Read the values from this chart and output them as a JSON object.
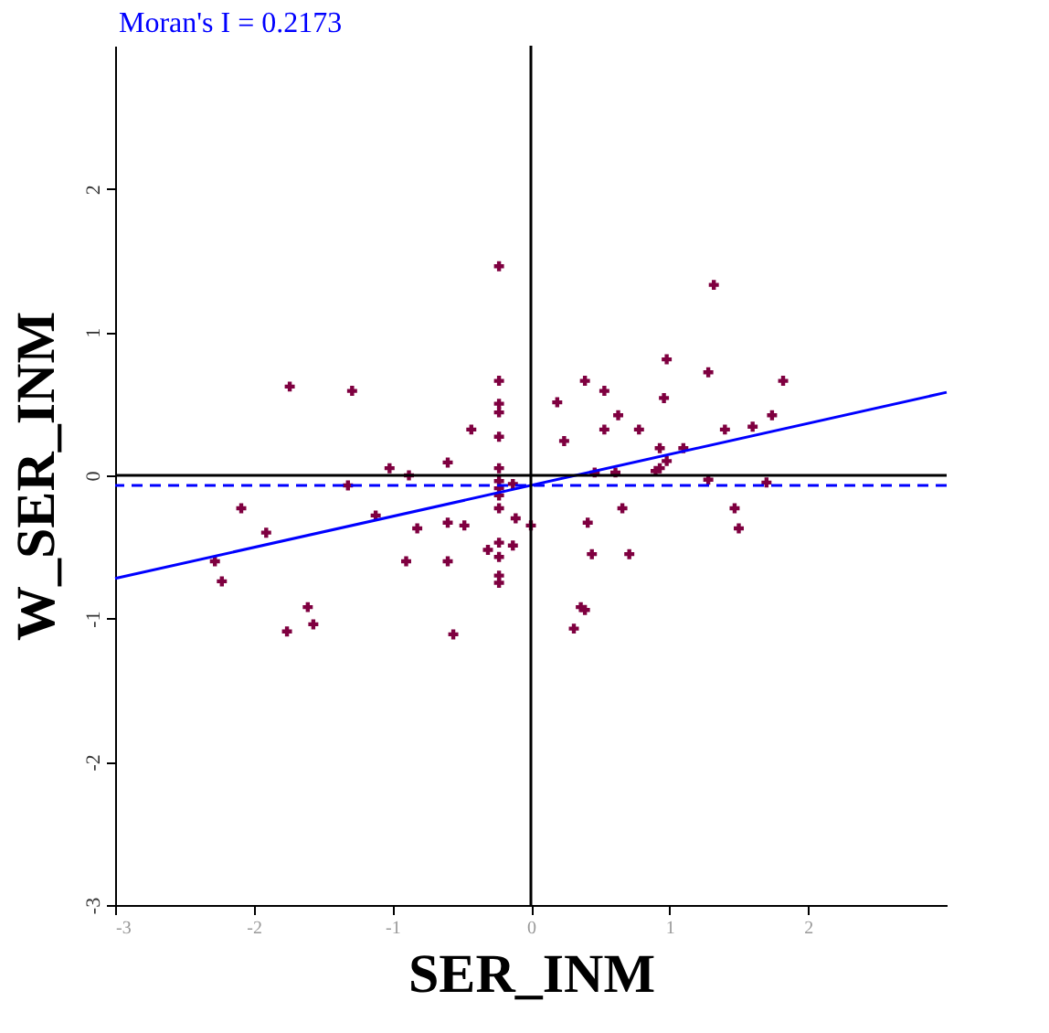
{
  "chart_data": {
    "type": "scatter",
    "title": "Moran's I = 0.2173",
    "xlabel": "SER_INM",
    "ylabel": "W_SER_INM",
    "xlim": [
      -3,
      3
    ],
    "ylim": [
      -3,
      3
    ],
    "xticks": [
      -3,
      -2,
      -1,
      0,
      1,
      2
    ],
    "yticks": [
      -3,
      -2,
      -1,
      0,
      1,
      2
    ],
    "grid": false,
    "ref_lines": [
      {
        "axis": "x",
        "value": 0,
        "label": null,
        "color": "#000000",
        "line_style": "solid"
      },
      {
        "axis": "y",
        "value": 0,
        "label": null,
        "color": "#000000",
        "line_style": "solid"
      },
      {
        "axis": "y",
        "value": -0.07,
        "label": null,
        "color": "#0000ff",
        "line_style": "dashed"
      }
    ],
    "series": [
      {
        "marker": "cross",
        "color": "#7f0040",
        "x": [
          -0.23,
          -1.74,
          -1.29,
          -0.23,
          -0.23,
          -0.23,
          -0.43,
          -0.23,
          -1.02,
          -0.88,
          -0.6,
          -0.23,
          -1.32,
          -0.23,
          -0.23,
          -0.13,
          -0.23,
          -0.23,
          -2.09,
          -1.12,
          -0.11,
          0.0,
          -1.91,
          -0.82,
          -0.6,
          -0.48,
          -2.28,
          -0.9,
          -0.6,
          -0.31,
          -0.23,
          -0.13,
          -0.23,
          -0.23,
          -0.23,
          -2.23,
          -1.61,
          -1.57,
          -1.76,
          -0.56,
          1.32,
          0.98,
          0.39,
          0.53,
          1.28,
          1.82,
          0.19,
          0.96,
          0.63,
          0.53,
          0.78,
          0.24,
          1.74,
          1.4,
          1.6,
          0.93,
          1.1,
          0.98,
          0.93,
          0.9,
          0.61,
          0.46,
          1.28,
          1.7,
          0.66,
          0.41,
          1.47,
          1.5,
          0.44,
          0.71,
          0.36,
          0.39,
          0.31
        ],
        "values": [
          1.46,
          0.62,
          0.59,
          0.66,
          0.5,
          0.44,
          0.32,
          0.27,
          0.05,
          0.0,
          0.09,
          0.05,
          -0.07,
          -0.04,
          -0.09,
          -0.06,
          -0.14,
          -0.23,
          -0.23,
          -0.28,
          -0.3,
          -0.35,
          -0.4,
          -0.37,
          -0.33,
          -0.35,
          -0.6,
          -0.6,
          -0.6,
          -0.52,
          -0.47,
          -0.49,
          -0.57,
          -0.7,
          -0.75,
          -0.74,
          -0.92,
          -1.04,
          -1.09,
          -1.11,
          1.33,
          0.81,
          0.66,
          0.59,
          0.72,
          0.66,
          0.51,
          0.54,
          0.42,
          0.32,
          0.32,
          0.24,
          0.42,
          0.32,
          0.34,
          0.19,
          0.19,
          0.1,
          0.05,
          0.03,
          0.02,
          0.02,
          -0.03,
          -0.05,
          -0.23,
          -0.33,
          -0.23,
          -0.37,
          -0.55,
          -0.55,
          -0.92,
          -0.94,
          -1.07
        ]
      },
      {
        "type": "line",
        "color": "#0000ff",
        "x": [
          -3,
          3
        ],
        "values": [
          -0.72,
          0.58
        ]
      }
    ]
  }
}
